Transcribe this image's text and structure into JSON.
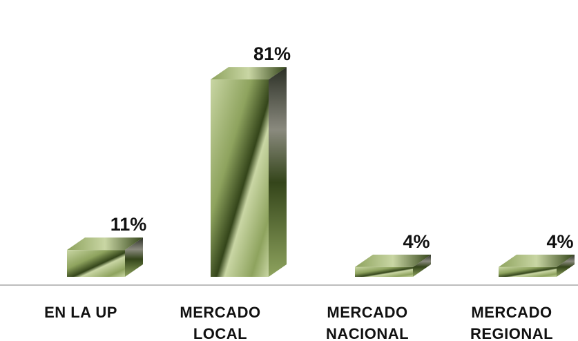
{
  "chart_data": {
    "type": "bar",
    "style": "3d-box",
    "categories": [
      [
        "EN LA UP"
      ],
      [
        "MERCADO",
        "LOCAL"
      ],
      [
        "MERCADO",
        "NACIONAL"
      ],
      [
        "MERCADO",
        "REGIONAL"
      ]
    ],
    "values": [
      11,
      81,
      4,
      4
    ],
    "value_labels": [
      "11%",
      "81%",
      "4%",
      "4%"
    ],
    "unit": "%",
    "ylim": [
      0,
      100
    ],
    "grid": false,
    "legend": "none",
    "colors": {
      "bar_light": "#c9d6a4",
      "bar_mid": "#8ea35e",
      "bar_dark": "#34451a",
      "bar_shadow": "#2b2f25",
      "baseline": "#a7a7a7",
      "text": "#111111"
    }
  }
}
